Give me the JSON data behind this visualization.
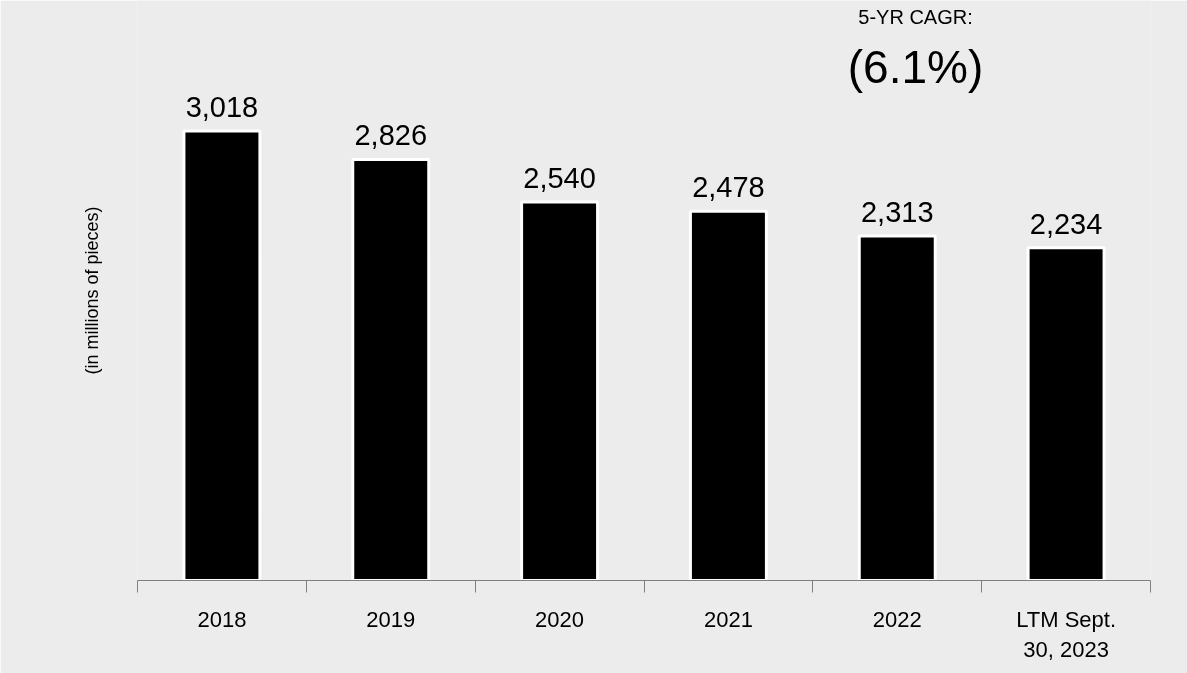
{
  "chart_data": {
    "type": "bar",
    "categories": [
      "2018",
      "2019",
      "2020",
      "2021",
      "2022",
      "LTM Sept. 30, 2023"
    ],
    "values": [
      3018,
      2826,
      2540,
      2478,
      2313,
      2234
    ],
    "value_labels": [
      "3,018",
      "2,826",
      "2,540",
      "2,478",
      "2,313",
      "2,234"
    ],
    "color": "#000000",
    "ylabel": "(in millions of pieces)",
    "tick_labels": "x",
    "grid": false,
    "annotations": [
      "5-YR CAGR:",
      "(6.1%)"
    ]
  }
}
